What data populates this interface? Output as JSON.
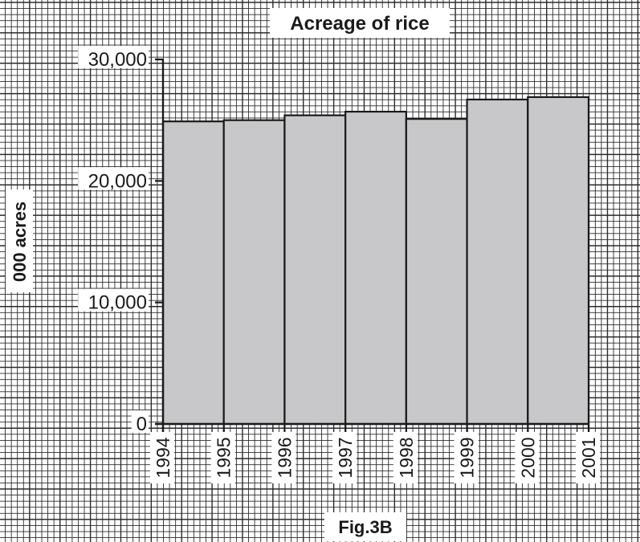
{
  "chart_data": {
    "type": "bar",
    "title": "Acreage of rice",
    "ylabel": "000 acres",
    "xlabel": "",
    "caption": "Fig.3B",
    "year_ticks": [
      "1994",
      "1995",
      "1996",
      "1997",
      "1998",
      "1999",
      "2000",
      "2001"
    ],
    "categories": [
      "1994",
      "1995",
      "1996",
      "1997",
      "1998",
      "1999",
      "2000"
    ],
    "values": [
      24900,
      25000,
      25400,
      25700,
      25100,
      26700,
      26900
    ],
    "y_ticks": [
      0,
      10000,
      20000,
      30000
    ],
    "y_tick_labels": [
      "0",
      "10,000",
      "20,000",
      "30,000"
    ],
    "ylim": [
      0,
      30000
    ],
    "grid": true,
    "bar_color": "#c8c8ca",
    "bar_edge_color": "#1a1a1a",
    "grid_color": "#2b2b2b"
  }
}
